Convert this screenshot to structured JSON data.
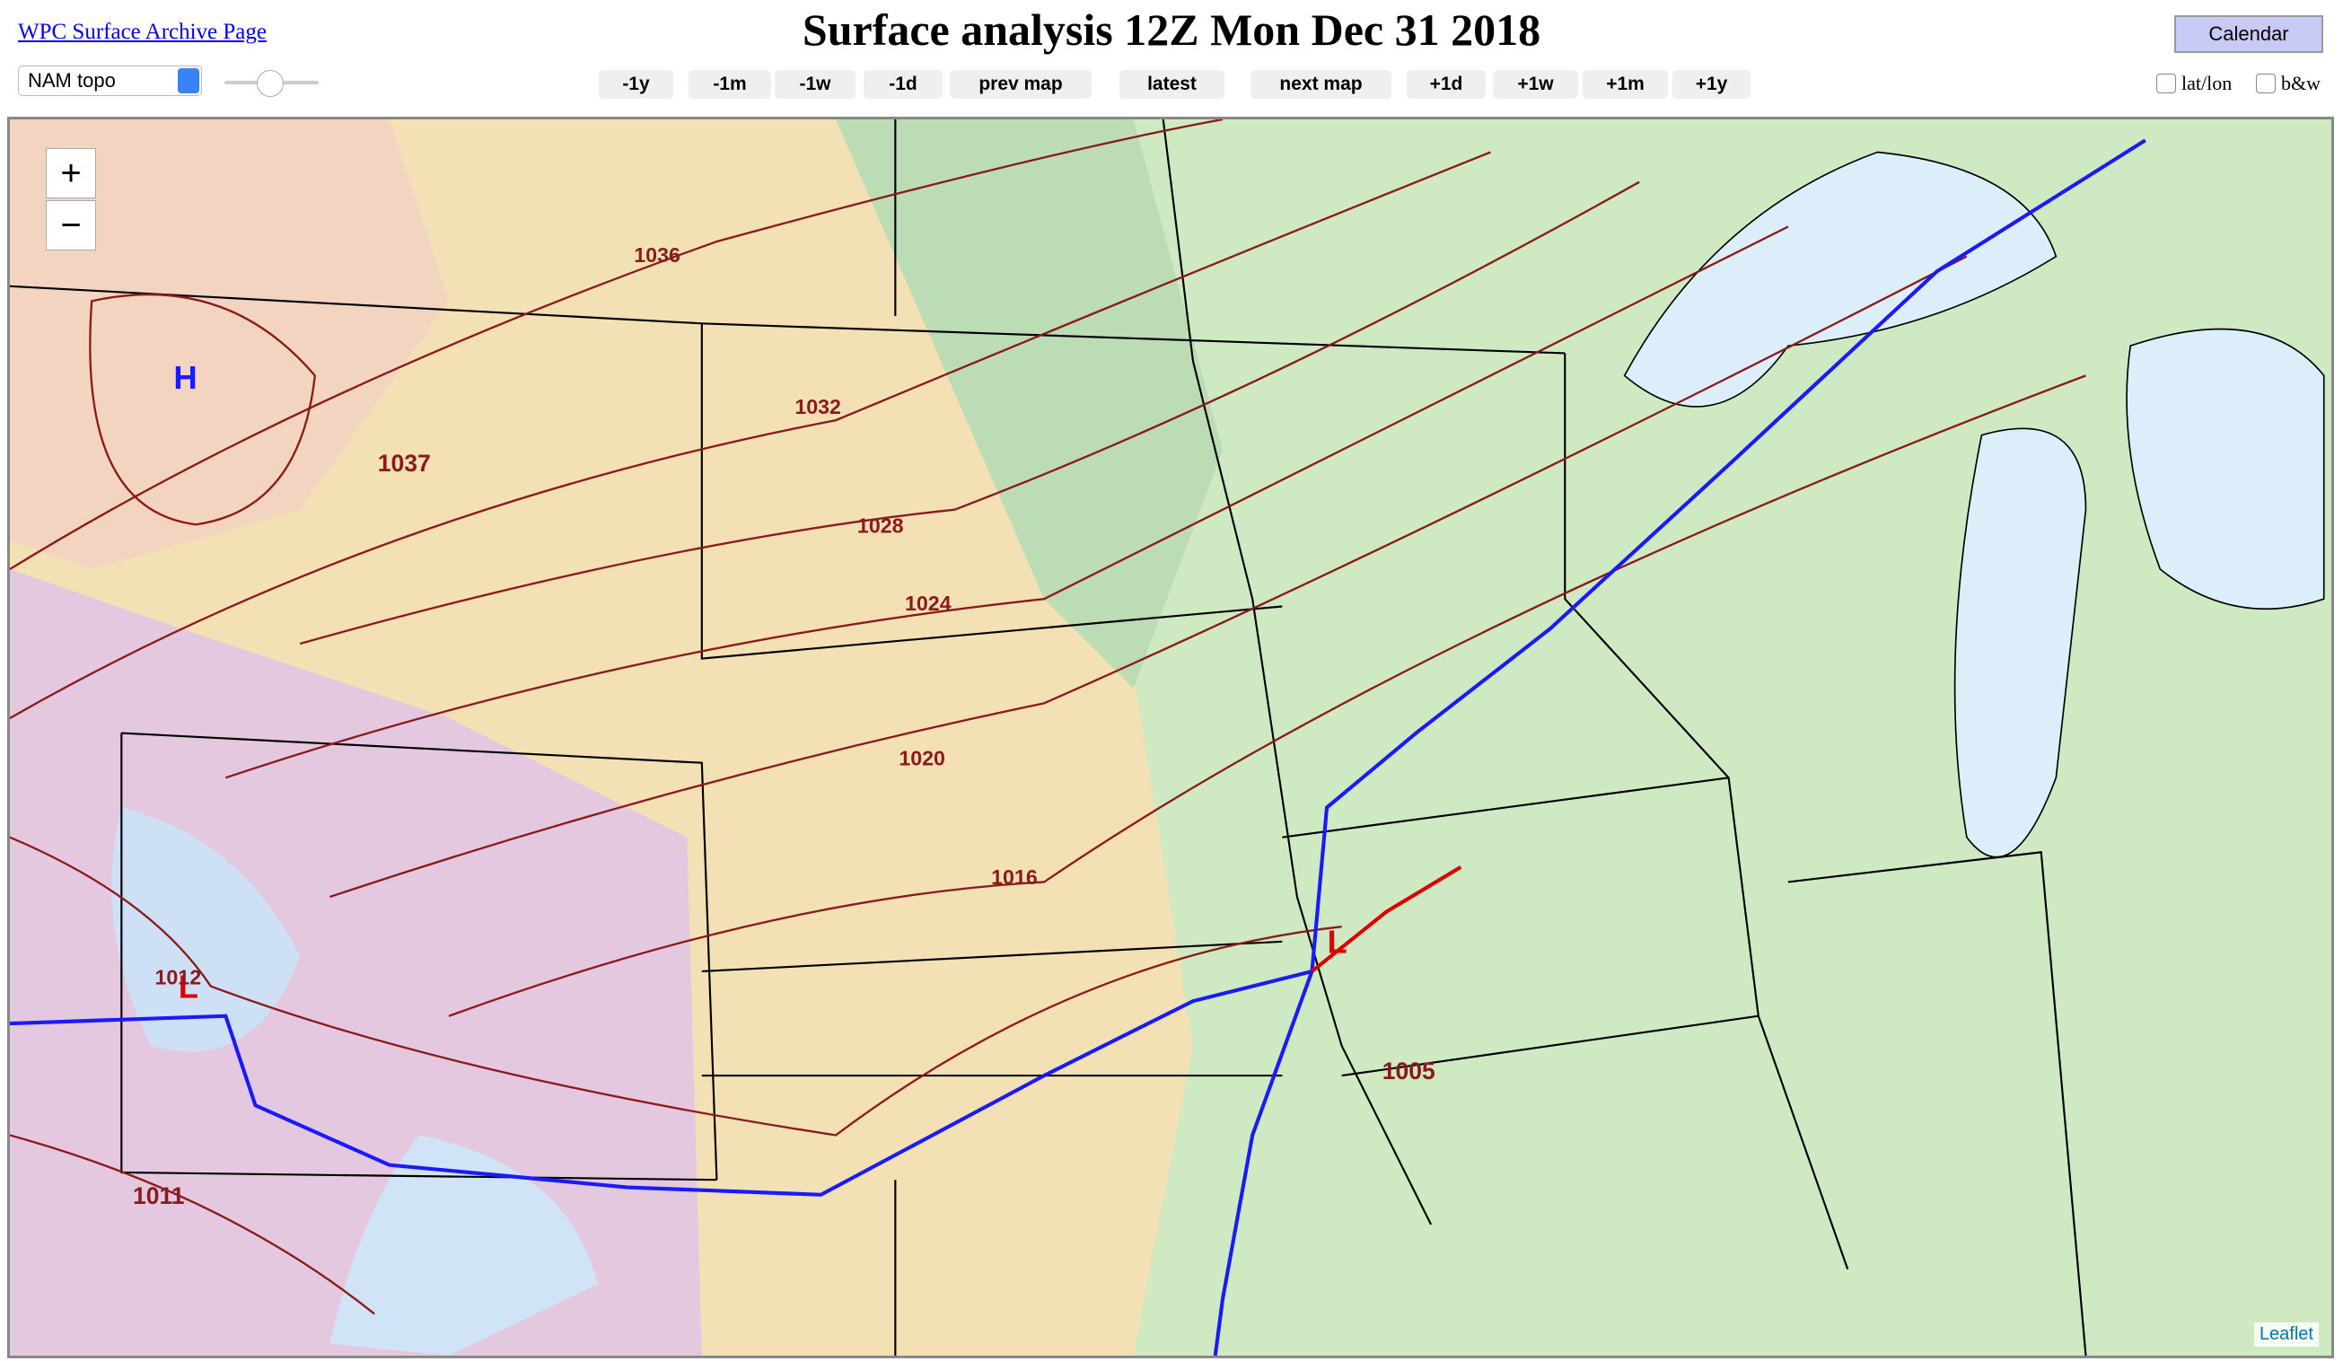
{
  "header": {
    "link": "WPC Surface Archive Page",
    "title": "Surface analysis 12Z Mon Dec 31 2018",
    "calendar": "Calendar"
  },
  "controls": {
    "layer": "NAM topo",
    "nav": [
      "-1y",
      "-1m",
      "-1w",
      "-1d",
      "prev map",
      "latest",
      "next map",
      "+1d",
      "+1w",
      "+1m",
      "+1y"
    ],
    "checkboxes": [
      "lat/lon",
      "b&w"
    ]
  },
  "map": {
    "zoom_in": "+",
    "zoom_out": "−",
    "attribution": "Leaflet",
    "labels": [
      "H",
      "L",
      "L",
      "1037",
      "1036",
      "1032",
      "1028",
      "1024",
      "1020",
      "1016",
      "1012",
      "1011",
      "1005"
    ]
  }
}
